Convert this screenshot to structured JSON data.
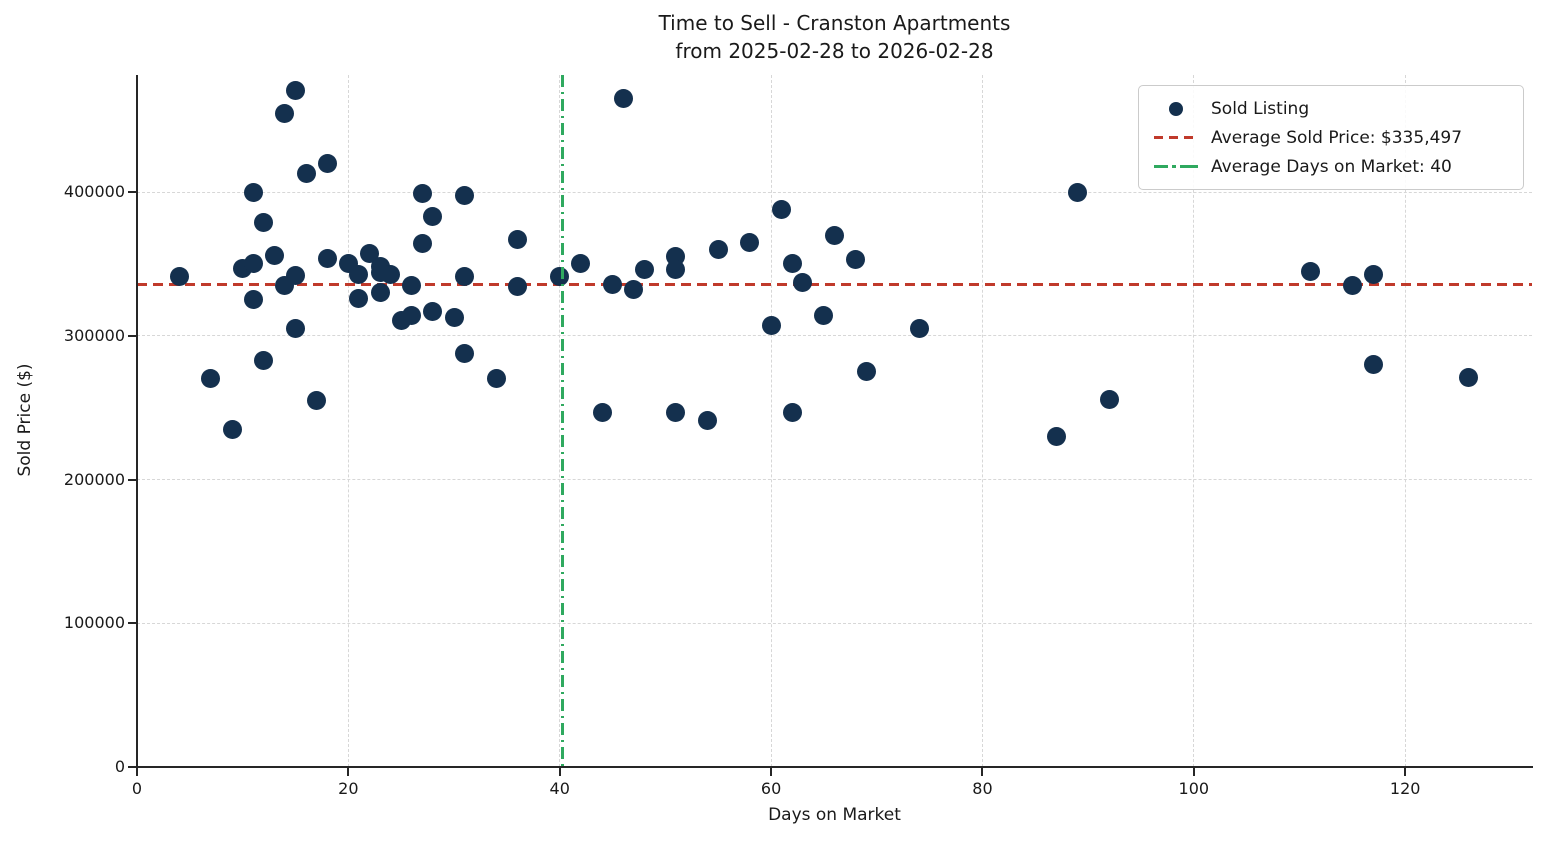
{
  "title": {
    "line1": "Time to Sell - Cranston Apartments",
    "line2": "from 2025-02-28 to 2026-02-28"
  },
  "colors": {
    "point": "#14304e",
    "avg_price_line": "#c03a2b",
    "avg_days_line": "#2fa95f",
    "grid": "#d7d7d7",
    "spine": "#262626"
  },
  "chart_data": {
    "type": "scatter",
    "title": "Time to Sell - Cranston Apartments from 2025-02-28 to 2026-02-28",
    "xlabel": "Days on Market",
    "ylabel": "Sold Price ($)",
    "xlim": [
      0,
      132
    ],
    "ylim": [
      0,
      481500
    ],
    "x_ticks": [
      0,
      20,
      40,
      60,
      80,
      100,
      120
    ],
    "y_ticks": [
      0,
      100000,
      200000,
      300000,
      400000
    ],
    "grid": true,
    "legend_position": "upper right",
    "series": [
      {
        "name": "Sold Listing",
        "type": "scatter",
        "points": [
          [
            4,
            341000
          ],
          [
            7,
            270000
          ],
          [
            9,
            235000
          ],
          [
            10,
            347000
          ],
          [
            11,
            350000
          ],
          [
            11,
            400000
          ],
          [
            11,
            325000
          ],
          [
            12,
            379000
          ],
          [
            12,
            283000
          ],
          [
            13,
            356000
          ],
          [
            14,
            455000
          ],
          [
            14,
            335000
          ],
          [
            15,
            471000
          ],
          [
            15,
            342000
          ],
          [
            15,
            305000
          ],
          [
            16,
            413000
          ],
          [
            17,
            255000
          ],
          [
            18,
            420000
          ],
          [
            18,
            354000
          ],
          [
            20,
            350000
          ],
          [
            21,
            343000
          ],
          [
            21,
            326000
          ],
          [
            22,
            357000
          ],
          [
            23,
            348000
          ],
          [
            23,
            344000
          ],
          [
            23,
            330000
          ],
          [
            24,
            343000
          ],
          [
            25,
            311000
          ],
          [
            26,
            335000
          ],
          [
            26,
            314000
          ],
          [
            27,
            364000
          ],
          [
            27,
            399000
          ],
          [
            28,
            383000
          ],
          [
            28,
            317000
          ],
          [
            30,
            313000
          ],
          [
            31,
            398000
          ],
          [
            31,
            341000
          ],
          [
            31,
            288000
          ],
          [
            34,
            270000
          ],
          [
            36,
            367000
          ],
          [
            36,
            334000
          ],
          [
            40,
            341000
          ],
          [
            42,
            350000
          ],
          [
            44,
            247000
          ],
          [
            45,
            336000
          ],
          [
            46,
            465000
          ],
          [
            47,
            332000
          ],
          [
            48,
            346000
          ],
          [
            51,
            355000
          ],
          [
            51,
            346000
          ],
          [
            51,
            247000
          ],
          [
            54,
            241000
          ],
          [
            55,
            360000
          ],
          [
            58,
            365000
          ],
          [
            60,
            307000
          ],
          [
            61,
            388000
          ],
          [
            62,
            350000
          ],
          [
            62,
            247000
          ],
          [
            63,
            337000
          ],
          [
            65,
            314000
          ],
          [
            66,
            370000
          ],
          [
            68,
            353000
          ],
          [
            69,
            275000
          ],
          [
            74,
            305000
          ],
          [
            87,
            230000
          ],
          [
            89,
            400000
          ],
          [
            92,
            256000
          ],
          [
            111,
            345000
          ],
          [
            115,
            335000
          ],
          [
            117,
            343000
          ],
          [
            117,
            280000
          ],
          [
            126,
            271000
          ]
        ]
      },
      {
        "name": "Average Sold Price: $335,497",
        "type": "hline",
        "y": 335497,
        "style": "dashed"
      },
      {
        "name": "Average Days on Market: 40",
        "type": "vline",
        "x": 40.3,
        "label_value": 40,
        "style": "dashdot"
      }
    ]
  }
}
